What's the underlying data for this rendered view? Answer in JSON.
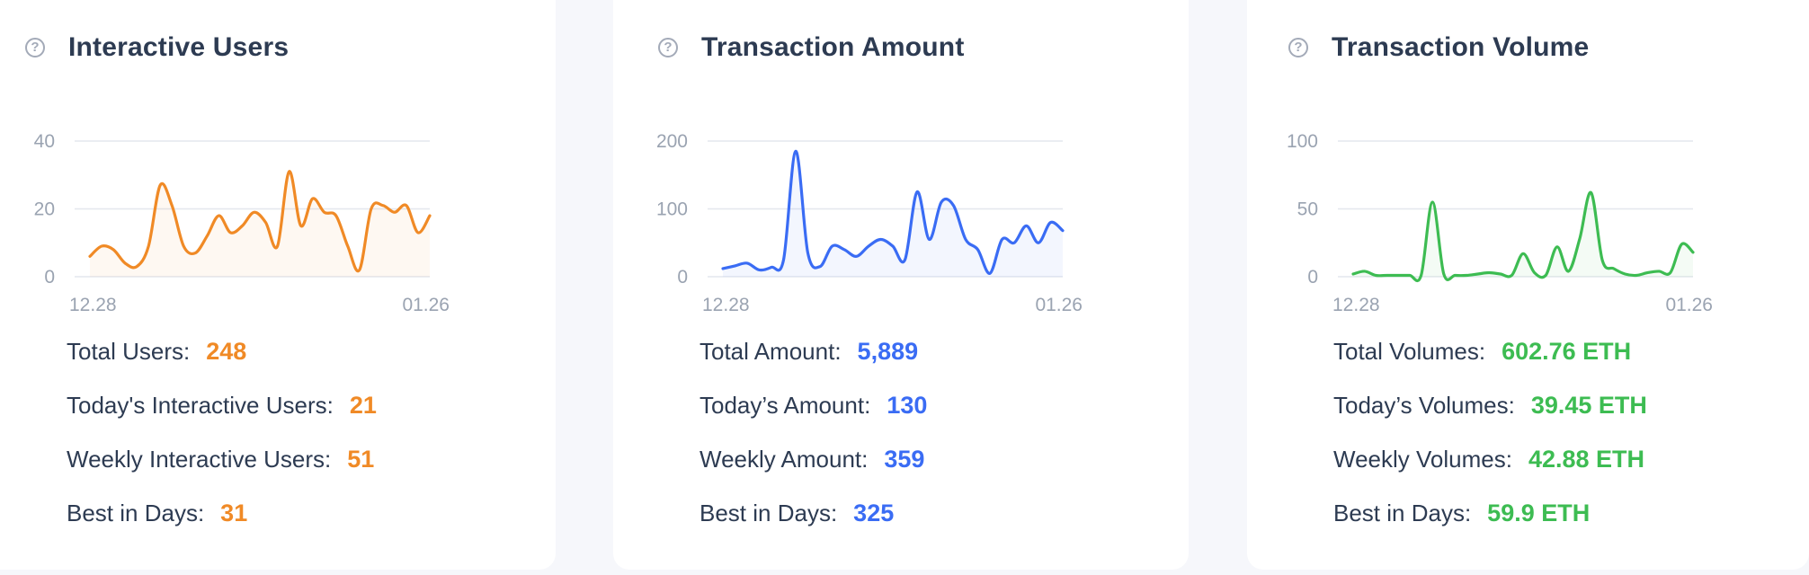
{
  "colors": {
    "orange": "#f08a26",
    "blue": "#3a6cf4",
    "green": "#3dbc52",
    "text": "#2d3b52",
    "muted": "#9aa3b1"
  },
  "help_icon": "question-circle-icon",
  "cards": [
    {
      "title": "Interactive Users",
      "stats": [
        {
          "label": "Total Users:",
          "value": "248"
        },
        {
          "label": "Today's Interactive Users:",
          "value": "21"
        },
        {
          "label": "Weekly Interactive Users:",
          "value": "51"
        },
        {
          "label": "Best in Days:",
          "value": "31"
        }
      ]
    },
    {
      "title": "Transaction Amount",
      "stats": [
        {
          "label": "Total Amount:",
          "value": "5,889"
        },
        {
          "label": "Today’s Amount:",
          "value": "130"
        },
        {
          "label": "Weekly Amount:",
          "value": "359"
        },
        {
          "label": "Best in Days:",
          "value": "325"
        }
      ]
    },
    {
      "title": "Transaction Volume",
      "stats": [
        {
          "label": "Total Volumes:",
          "value": "602.76 ETH"
        },
        {
          "label": "Today’s Volumes:",
          "value": "39.45 ETH"
        },
        {
          "label": "Weekly Volumes:",
          "value": "42.88 ETH"
        },
        {
          "label": "Best in Days:",
          "value": "59.9 ETH"
        }
      ]
    }
  ],
  "chart_data": [
    {
      "type": "area",
      "color": "#f08a26",
      "x_labels": [
        "12.28",
        "01.26"
      ],
      "yticks": [
        0,
        20,
        40
      ],
      "ylim": [
        0,
        40
      ],
      "values": [
        6,
        9,
        8,
        4,
        3,
        9,
        27,
        21,
        9,
        7,
        12,
        18,
        13,
        15,
        19,
        16,
        9,
        31,
        15,
        23,
        19,
        18,
        9,
        2,
        20,
        21,
        19,
        21,
        13,
        18
      ]
    },
    {
      "type": "area",
      "color": "#3a6cf4",
      "x_labels": [
        "12.28",
        "01.26"
      ],
      "yticks": [
        0,
        100,
        200
      ],
      "ylim": [
        0,
        200
      ],
      "values": [
        12,
        16,
        20,
        10,
        14,
        25,
        185,
        35,
        15,
        45,
        40,
        30,
        45,
        55,
        45,
        25,
        125,
        55,
        110,
        105,
        55,
        40,
        5,
        55,
        50,
        75,
        50,
        80,
        68
      ]
    },
    {
      "type": "area",
      "color": "#3dbc52",
      "x_labels": [
        "12.28",
        "01.26"
      ],
      "yticks": [
        0,
        50,
        100
      ],
      "ylim": [
        0,
        100
      ],
      "values": [
        2,
        4,
        1,
        1,
        1,
        1,
        1,
        55,
        2,
        1,
        1,
        2,
        3,
        2,
        1,
        17,
        3,
        1,
        22,
        4,
        28,
        62,
        12,
        6,
        2,
        1,
        3,
        4,
        3,
        24,
        18
      ]
    }
  ]
}
